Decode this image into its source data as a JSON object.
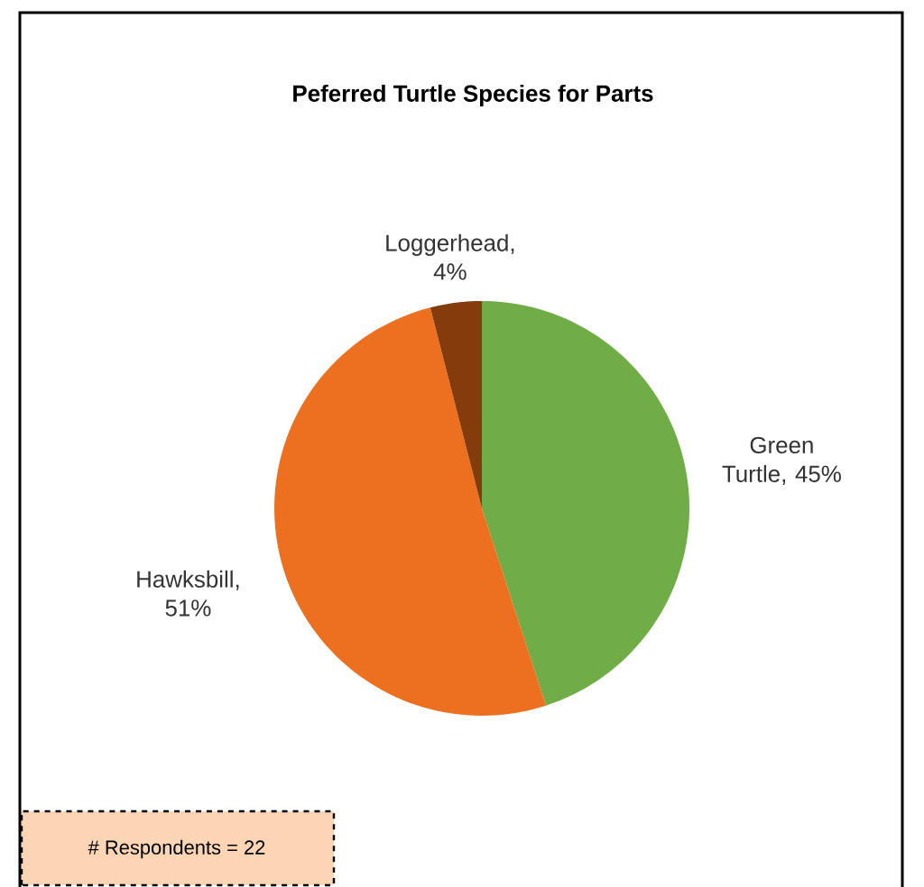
{
  "chart_data": {
    "type": "pie",
    "title": "Peferred Turtle Species for Parts",
    "categories": [
      "Green Turtle",
      "Hawksbill",
      "Loggerhead"
    ],
    "values": [
      45,
      51,
      4
    ],
    "value_labels": [
      ", 45%",
      ", 51%",
      ", 4%"
    ],
    "colors": [
      "#70ad47",
      "#ec7020",
      "#843c0c"
    ],
    "annotations": [
      "# Respondents = 22"
    ]
  }
}
